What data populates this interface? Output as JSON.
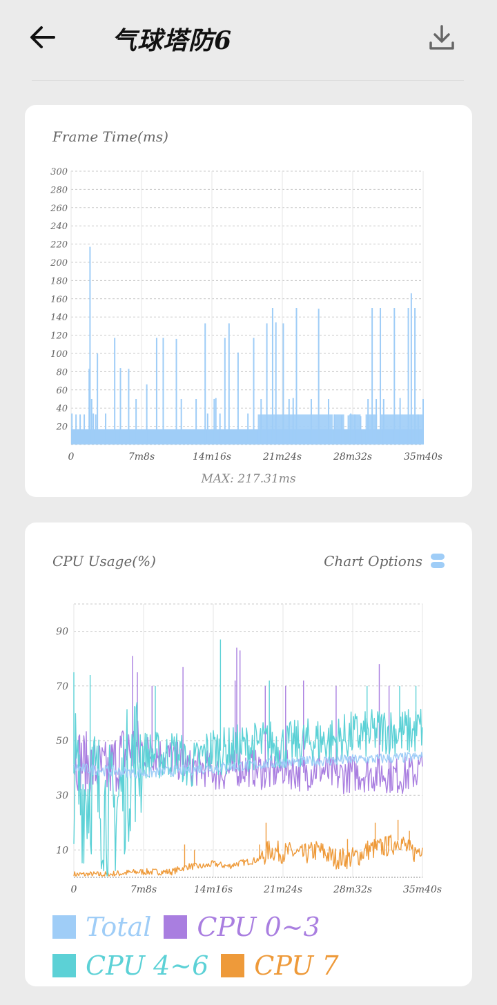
{
  "header": {
    "title": "气球塔防6",
    "back_icon": "arrow-left-icon",
    "download_icon": "download-icon"
  },
  "frame_card": {
    "title": "Frame Time(ms)",
    "max_label": "MAX: 217.31ms"
  },
  "cpu_card": {
    "title": "CPU Usage(%)",
    "options_label": "Chart Options",
    "options_icon": "toggle-pill-icon"
  },
  "chart_data": [
    {
      "type": "bar",
      "title": "Frame Time(ms)",
      "ylim": [
        0,
        300
      ],
      "yticks": [
        "20",
        "40",
        "60",
        "80",
        "100",
        "120",
        "140",
        "160",
        "180",
        "200",
        "220",
        "240",
        "260",
        "280",
        "300"
      ],
      "xticks": [
        "0",
        "7m8s",
        "14m16s",
        "21m24s",
        "28m32s",
        "35m40s"
      ],
      "x_range_seconds": [
        0,
        2140
      ],
      "baseline": 16.7,
      "x": [
        5,
        30,
        55,
        80,
        110,
        115,
        125,
        135,
        150,
        160,
        210,
        265,
        300,
        350,
        395,
        460,
        520,
        560,
        640,
        670,
        760,
        815,
        830,
        870,
        880,
        905,
        935,
        960,
        1015,
        1075,
        1110,
        1155,
        1190,
        1225,
        1245,
        1290,
        1325,
        1350,
        1370,
        1460,
        1505,
        1565,
        1600,
        1645,
        1685,
        1700,
        1725,
        1760,
        1805,
        1830,
        1855,
        1880,
        1900,
        1965,
        2000,
        2050,
        2068,
        2090,
        2110,
        2140
      ],
      "values": [
        34,
        33,
        33,
        33,
        83,
        217,
        50,
        34,
        33,
        100,
        34,
        117,
        84,
        83,
        50,
        66,
        117,
        117,
        116,
        50,
        50,
        133,
        34,
        50,
        51,
        34,
        117,
        133,
        101,
        34,
        117,
        50,
        133,
        150,
        134,
        133,
        50,
        51,
        150,
        50,
        149,
        50,
        33,
        32,
        32,
        34,
        33,
        31,
        50,
        150,
        50,
        150,
        50,
        150,
        51,
        150,
        166,
        150,
        33,
        50
      ],
      "band_ranges_seconds": [
        [
          1135,
          1590
        ],
        [
          1600,
          1660
        ],
        [
          1690,
          1760
        ],
        [
          1790,
          1860
        ],
        [
          1880,
          2140
        ]
      ],
      "band_value": 33,
      "max": 217.31,
      "legend": []
    },
    {
      "type": "line",
      "title": "CPU Usage(%)",
      "ylim": [
        0,
        100
      ],
      "yticks": [
        "10",
        "30",
        "50",
        "70",
        "90"
      ],
      "xticks": [
        "0",
        "7m8s",
        "14m16s",
        "21m24s",
        "28m32s",
        "35m40s"
      ],
      "x_range_seconds": [
        0,
        2140
      ],
      "series": [
        {
          "name": "Total",
          "color": "#9fcdf7",
          "x": [
            0,
            428,
            856,
            1284,
            1712,
            2140
          ],
          "values": [
            40,
            38,
            40,
            42,
            43,
            44
          ]
        },
        {
          "name": "CPU 0~3",
          "color": "#a97ee0",
          "x": [
            0,
            60,
            120,
            200,
            280,
            360,
            440,
            520,
            600,
            700,
            800,
            900,
            1000,
            1100,
            1200,
            1284,
            1400,
            1500,
            1600,
            1712,
            1800,
            1900,
            2000,
            2080,
            2140
          ],
          "values": [
            45,
            42,
            40,
            38,
            44,
            47,
            46,
            45,
            44,
            40,
            40,
            38,
            40,
            40,
            38,
            40,
            38,
            40,
            37,
            38,
            38,
            38,
            37,
            38,
            40
          ],
          "spikes_x": [
            360,
            390,
            480,
            670,
            990,
            1000,
            1020,
            1175,
            1300,
            1410,
            1610,
            1875,
            1935
          ],
          "spikes_y": [
            81,
            75,
            70,
            77,
            72,
            84,
            83,
            70,
            70,
            72,
            70,
            78,
            70
          ]
        },
        {
          "name": "CPU 4~6",
          "color": "#5cd1d6",
          "x": [
            0,
            40,
            80,
            120,
            160,
            200,
            240,
            280,
            320,
            360,
            400,
            480,
            560,
            640,
            700,
            760,
            800,
            856,
            920,
            1000,
            1100,
            1200,
            1284,
            1400,
            1500,
            1600,
            1712,
            1800,
            1900,
            2000,
            2080,
            2140
          ],
          "values": [
            38,
            30,
            32,
            34,
            28,
            26,
            22,
            30,
            35,
            44,
            45,
            45,
            44,
            46,
            40,
            42,
            45,
            47,
            46,
            47,
            48,
            49,
            48,
            49,
            50,
            50,
            52,
            52,
            54,
            53,
            53,
            55
          ],
          "spikes_x": [
            0,
            100,
            500,
            900,
            1200,
            1800,
            2000,
            2100
          ],
          "spikes_y": [
            75,
            74,
            70,
            87,
            72,
            70,
            70,
            70
          ]
        },
        {
          "name": "CPU 7",
          "color": "#ee9a3a",
          "x": [
            0,
            200,
            400,
            600,
            700,
            800,
            856,
            950,
            1000,
            1100,
            1150,
            1200,
            1284,
            1350,
            1400,
            1500,
            1600,
            1700,
            1750,
            1800,
            1900,
            1960,
            2000,
            2050,
            2100,
            2140
          ],
          "values": [
            1,
            1,
            2,
            2,
            4,
            4,
            5,
            4,
            5,
            6,
            7,
            10,
            9,
            9,
            8,
            10,
            7,
            7,
            8,
            10,
            11,
            12,
            14,
            10,
            9,
            12
          ],
          "spikes_x": [
            680,
            740,
            1140,
            1180,
            1680,
            1850,
            1930,
            1990,
            2060
          ],
          "spikes_y": [
            12,
            10,
            12,
            20,
            14,
            20,
            15,
            21,
            17
          ]
        }
      ],
      "legend": [
        "Total",
        "CPU 0~3",
        "CPU 4~6",
        "CPU 7"
      ]
    }
  ]
}
